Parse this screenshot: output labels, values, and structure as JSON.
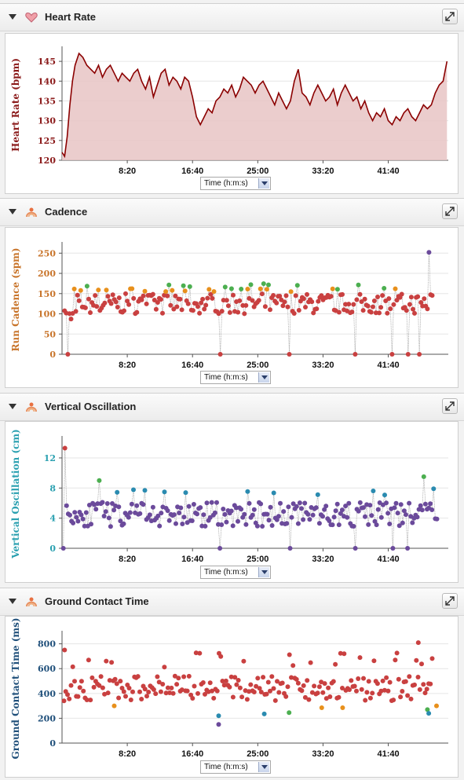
{
  "x_select_label": "Time (h:m:s)",
  "panels": [
    {
      "title": "Heart Rate",
      "icon": "heart-icon"
    },
    {
      "title": "Cadence",
      "icon": "runner-icon"
    },
    {
      "title": "Vertical Oscillation",
      "icon": "runner-icon"
    },
    {
      "title": "Ground Contact Time",
      "icon": "runner-icon"
    }
  ],
  "colors": {
    "heart_line": "#8b0000",
    "heart_fill": "#e8c4c4",
    "red": "#c94040",
    "orange": "#e8901c",
    "green": "#4caf50",
    "blue": "#2a8bb0",
    "purple": "#6b4a9b",
    "cadence_label": "#c8742a",
    "vo_label": "#2aa0b0",
    "gct_label": "#1f4f7a",
    "hr_label": "#8b1a1a"
  },
  "chart_data": [
    {
      "type": "area",
      "ylabel": "Heart Rate (bpm)",
      "xticks": [
        "8:20",
        "16:40",
        "25:00",
        "33:20",
        "41:40"
      ],
      "xtick_seconds": [
        500,
        1000,
        1500,
        2000,
        2500
      ],
      "xlim": [
        0,
        2960
      ],
      "ylim": [
        120,
        148
      ],
      "yticks": [
        120,
        125,
        130,
        135,
        140,
        145
      ],
      "x": [
        0,
        20,
        40,
        60,
        80,
        100,
        130,
        160,
        190,
        220,
        250,
        280,
        310,
        340,
        370,
        400,
        430,
        460,
        490,
        520,
        550,
        580,
        610,
        640,
        670,
        700,
        730,
        760,
        790,
        820,
        850,
        880,
        910,
        940,
        970,
        1000,
        1030,
        1060,
        1090,
        1120,
        1150,
        1180,
        1210,
        1240,
        1270,
        1300,
        1330,
        1360,
        1390,
        1420,
        1450,
        1480,
        1510,
        1540,
        1570,
        1600,
        1630,
        1660,
        1690,
        1720,
        1750,
        1780,
        1810,
        1840,
        1870,
        1900,
        1930,
        1960,
        1990,
        2020,
        2050,
        2080,
        2110,
        2140,
        2170,
        2200,
        2230,
        2260,
        2290,
        2320,
        2350,
        2380,
        2410,
        2440,
        2470,
        2500,
        2530,
        2560,
        2590,
        2620,
        2650,
        2680,
        2710,
        2740,
        2770,
        2800,
        2830,
        2860,
        2890,
        2920,
        2950
      ],
      "values": [
        122,
        121,
        126,
        134,
        140,
        144,
        147,
        146,
        144,
        143,
        142,
        144,
        141,
        143,
        144,
        142,
        140,
        142,
        141,
        140,
        142,
        143,
        140,
        138,
        141,
        136,
        139,
        142,
        143,
        139,
        141,
        140,
        138,
        141,
        140,
        136,
        131,
        129,
        131,
        133,
        132,
        135,
        136,
        138,
        137,
        139,
        136,
        138,
        141,
        140,
        139,
        137,
        139,
        140,
        138,
        136,
        134,
        137,
        135,
        133,
        135,
        140,
        143,
        137,
        136,
        134,
        137,
        139,
        137,
        135,
        136,
        138,
        134,
        137,
        139,
        137,
        135,
        136,
        133,
        135,
        132,
        130,
        132,
        131,
        133,
        130,
        129,
        131,
        130,
        132,
        133,
        131,
        130,
        132,
        134,
        133,
        134,
        137,
        139,
        140,
        145
      ]
    },
    {
      "type": "scatter",
      "ylabel": "Run Cadence (spm)",
      "xticks": [
        "8:20",
        "16:40",
        "25:00",
        "33:20",
        "41:40"
      ],
      "xlim": [
        0,
        2960
      ],
      "ylim": [
        0,
        270
      ],
      "yticks": [
        0,
        50,
        100,
        150,
        200,
        250
      ]
    },
    {
      "type": "scatter",
      "ylabel": "Vertical Oscillation (cm)",
      "xticks": [
        "8:20",
        "16:40",
        "25:00",
        "33:20",
        "41:40"
      ],
      "xlim": [
        0,
        2960
      ],
      "ylim": [
        0,
        14.5
      ],
      "yticks": [
        0,
        4,
        8,
        12
      ]
    },
    {
      "type": "scatter",
      "ylabel": "Ground Contact Time (ms)",
      "xticks": [
        "8:20",
        "16:40",
        "25:00",
        "33:20",
        "41:40"
      ],
      "xlim": [
        0,
        2960
      ],
      "ylim": [
        0,
        880
      ],
      "yticks": [
        0,
        200,
        400,
        600,
        800
      ]
    }
  ]
}
